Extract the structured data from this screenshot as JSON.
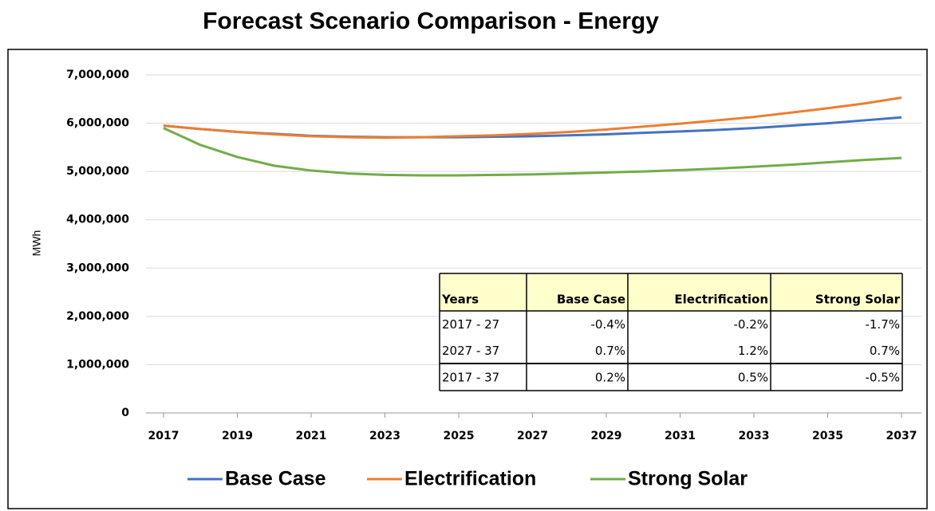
{
  "chart_data": {
    "type": "line",
    "title": "Forecast Scenario Comparison - Energy",
    "ylabel": "MWh",
    "x": [
      2017,
      2018,
      2019,
      2020,
      2021,
      2022,
      2023,
      2024,
      2025,
      2026,
      2027,
      2028,
      2029,
      2030,
      2031,
      2032,
      2033,
      2034,
      2035,
      2036,
      2037
    ],
    "series": [
      {
        "name": "Base Case",
        "color": "#4472c4",
        "values": [
          5950000,
          5880000,
          5820000,
          5780000,
          5740000,
          5720000,
          5710000,
          5710000,
          5710000,
          5720000,
          5730000,
          5750000,
          5770000,
          5800000,
          5830000,
          5860000,
          5900000,
          5950000,
          6000000,
          6060000,
          6120000
        ]
      },
      {
        "name": "Electrification",
        "color": "#ed7d31",
        "values": [
          5950000,
          5880000,
          5820000,
          5770000,
          5730000,
          5710000,
          5700000,
          5710000,
          5730000,
          5750000,
          5780000,
          5820000,
          5870000,
          5930000,
          5990000,
          6060000,
          6130000,
          6220000,
          6310000,
          6410000,
          6530000
        ]
      },
      {
        "name": "Strong Solar",
        "color": "#70ad47",
        "values": [
          5900000,
          5550000,
          5300000,
          5120000,
          5020000,
          4960000,
          4930000,
          4920000,
          4920000,
          4930000,
          4940000,
          4960000,
          4980000,
          5000000,
          5030000,
          5060000,
          5100000,
          5140000,
          5190000,
          5240000,
          5280000
        ]
      }
    ],
    "xlim": [
      2017,
      2037
    ],
    "xticks": [
      2017,
      2019,
      2021,
      2023,
      2025,
      2027,
      2029,
      2031,
      2033,
      2035,
      2037
    ],
    "ylim": [
      0,
      7000000
    ],
    "yticks": [
      0,
      {
        "value": 1000000,
        "label": "1,000,000"
      },
      {
        "value": 2000000,
        "label": "2,000,000"
      },
      {
        "value": 3000000,
        "label": "3,000,000"
      },
      {
        "value": 4000000,
        "label": "4,000,000"
      },
      {
        "value": 5000000,
        "label": "5,000,000"
      },
      {
        "value": 6000000,
        "label": "6,000,000"
      },
      {
        "value": 7000000,
        "label": "7,000,000"
      }
    ],
    "grid": true,
    "legend": "bottom"
  },
  "table": {
    "columns": [
      "Years",
      "Base Case",
      "Electrification",
      "Strong Solar"
    ],
    "rows": [
      [
        "2017 - 27",
        "-0.4%",
        "-0.2%",
        "-1.7%"
      ],
      [
        "2027 - 37",
        "0.7%",
        "1.2%",
        "0.7%"
      ],
      [
        "2017 - 37",
        "0.2%",
        "0.5%",
        "-0.5%"
      ]
    ]
  }
}
